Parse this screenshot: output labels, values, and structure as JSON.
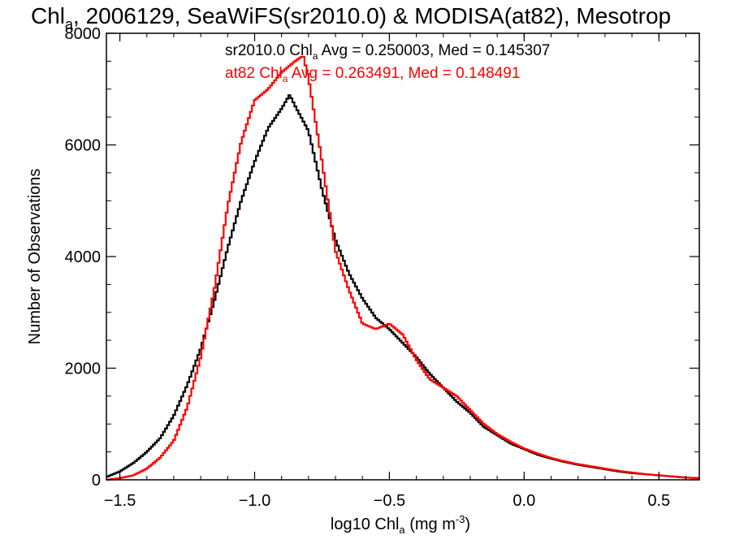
{
  "chart_data": {
    "type": "line",
    "title": {
      "prefix": "Chl",
      "sub": "a",
      "rest": ", 2006129, SeaWiFS(sr2010.0) & MODISA(at82), Mesotrop"
    },
    "xlabel": {
      "prefix": "log10 Chl",
      "sub": "a",
      "mid": " (mg m",
      "sup": "-3",
      "end": ")"
    },
    "ylabel": "Number of Observations",
    "xlim": [
      -1.55,
      0.65
    ],
    "ylim": [
      0,
      8000
    ],
    "x_ticks": [
      -1.5,
      -1.0,
      -0.5,
      0.0,
      0.5
    ],
    "x_tick_labels": [
      "−1.5",
      "−1.0",
      "−0.5",
      "0.0",
      "0.5"
    ],
    "y_ticks": [
      0,
      2000,
      4000,
      6000,
      8000
    ],
    "y_tick_labels": [
      "0",
      "2000",
      "4000",
      "6000",
      "8000"
    ],
    "grid": false,
    "annotations": [
      {
        "pre": "sr2010.0 Chl",
        "sub": "a",
        "post": " Avg = 0.250003, Med = 0.145307",
        "color": "#000000"
      },
      {
        "pre": "at82 Chl",
        "sub": "a",
        "post": " Avg = 0.263491, Med = 0.148491",
        "color": "#ff0000"
      }
    ],
    "series": [
      {
        "color": "#000000",
        "x": [
          -1.55,
          -1.5,
          -1.45,
          -1.4,
          -1.35,
          -1.3,
          -1.25,
          -1.2,
          -1.15,
          -1.1,
          -1.05,
          -1.0,
          -0.95,
          -0.9,
          -0.87,
          -0.85,
          -0.8,
          -0.75,
          -0.7,
          -0.65,
          -0.6,
          -0.55,
          -0.5,
          -0.45,
          -0.4,
          -0.35,
          -0.3,
          -0.25,
          -0.2,
          -0.15,
          -0.1,
          -0.05,
          0.0,
          0.05,
          0.1,
          0.15,
          0.2,
          0.25,
          0.3,
          0.35,
          0.4,
          0.45,
          0.5,
          0.55,
          0.6,
          0.65
        ],
        "y": [
          50,
          150,
          300,
          500,
          750,
          1150,
          1700,
          2350,
          3200,
          4150,
          5000,
          5700,
          6300,
          6650,
          6900,
          6700,
          6250,
          5200,
          4300,
          3700,
          3250,
          2900,
          2700,
          2450,
          2200,
          1900,
          1650,
          1400,
          1200,
          950,
          800,
          650,
          550,
          450,
          380,
          320,
          270,
          230,
          190,
          150,
          120,
          100,
          80,
          60,
          40,
          30
        ]
      },
      {
        "color": "#ff0000",
        "x": [
          -1.55,
          -1.5,
          -1.45,
          -1.4,
          -1.35,
          -1.3,
          -1.25,
          -1.2,
          -1.15,
          -1.1,
          -1.05,
          -1.0,
          -0.95,
          -0.9,
          -0.85,
          -0.82,
          -0.8,
          -0.75,
          -0.7,
          -0.65,
          -0.6,
          -0.55,
          -0.5,
          -0.45,
          -0.4,
          -0.35,
          -0.3,
          -0.25,
          -0.2,
          -0.15,
          -0.1,
          -0.05,
          0.0,
          0.05,
          0.1,
          0.15,
          0.2,
          0.25,
          0.3,
          0.35,
          0.4,
          0.45,
          0.5,
          0.55,
          0.6,
          0.65
        ],
        "y": [
          0,
          30,
          80,
          200,
          400,
          700,
          1300,
          2200,
          3400,
          4900,
          6050,
          6800,
          7000,
          7300,
          7500,
          7600,
          7200,
          5700,
          4100,
          3400,
          2800,
          2700,
          2800,
          2600,
          2150,
          1800,
          1650,
          1500,
          1250,
          1000,
          820,
          680,
          560,
          470,
          390,
          330,
          280,
          240,
          200,
          160,
          130,
          100,
          80,
          60,
          40,
          30
        ]
      }
    ]
  }
}
